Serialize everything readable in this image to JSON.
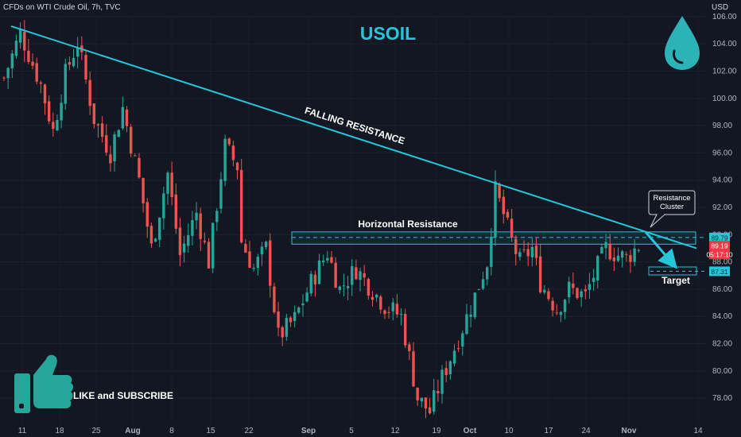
{
  "header": "CFDs on WTI Crude Oil, 7h, TVC",
  "currency": "USD",
  "title": "USOIL",
  "annotations": {
    "falling": "FALLING RESISTANCE",
    "horizontal": "Horizontal Resistance",
    "cluster_line1": "Resistance",
    "cluster_line2": "Cluster",
    "target": "Target",
    "cta": "LIKE and SUBSCRIBE"
  },
  "price_tags": [
    {
      "text": "89.79",
      "value": 89.79,
      "color": "#26c6da",
      "fg": "#0b2a30"
    },
    {
      "text": "89.19",
      "value": 89.19,
      "color": "#f23645",
      "fg": "#ffffff"
    },
    {
      "text": "05:17:10",
      "value": 88.55,
      "color": "#f23645",
      "fg": "#ffffff"
    },
    {
      "text": "87.31",
      "value": 87.31,
      "color": "#26c6da",
      "fg": "#0b2a30"
    }
  ],
  "colors": {
    "up": "#26a69a",
    "down": "#ef5350",
    "accent": "#26c6da"
  },
  "icons": [
    "water-drop-icon",
    "thumbs-up-icon"
  ],
  "chart_data": {
    "type": "candlestick",
    "title": "USOIL",
    "ylim": [
      76,
      107
    ],
    "y_ticks": [
      78,
      80,
      82,
      84,
      86,
      88,
      90,
      92,
      94,
      96,
      98,
      100,
      102,
      104,
      106
    ],
    "x_tick_labels": [
      "11",
      "18",
      "25",
      "Aug",
      "8",
      "15",
      "22",
      "Sep",
      "5",
      "12",
      "19",
      "Oct",
      "10",
      "17",
      "24",
      "Nov",
      "14"
    ],
    "close_path": [
      [
        0,
        101.5
      ],
      [
        4,
        104.8
      ],
      [
        9,
        101.0
      ],
      [
        12,
        97.6
      ],
      [
        15,
        101.8
      ],
      [
        18,
        104.1
      ],
      [
        22,
        98.5
      ],
      [
        26,
        96.0
      ],
      [
        29,
        99.3
      ],
      [
        33,
        94.0
      ],
      [
        36,
        89.0
      ],
      [
        40,
        94.5
      ],
      [
        43,
        88.5
      ],
      [
        47,
        91.6
      ],
      [
        50,
        88.0
      ],
      [
        54,
        96.5
      ],
      [
        57,
        95.0
      ],
      [
        58,
        89.5
      ],
      [
        61,
        87.5
      ],
      [
        64,
        89.0
      ],
      [
        67,
        82.5
      ],
      [
        71,
        83.8
      ],
      [
        75,
        86.5
      ],
      [
        79,
        88.7
      ],
      [
        82,
        86.0
      ],
      [
        86,
        87.5
      ],
      [
        89,
        86.3
      ],
      [
        93,
        84.8
      ],
      [
        97,
        84.0
      ],
      [
        101,
        78.0
      ],
      [
        104,
        77.0
      ],
      [
        107,
        79.5
      ],
      [
        111,
        82.4
      ],
      [
        115,
        85.5
      ],
      [
        118,
        88.0
      ],
      [
        120,
        93.2
      ],
      [
        122,
        91.5
      ],
      [
        124,
        89.5
      ],
      [
        126,
        88.0
      ],
      [
        129,
        89.0
      ],
      [
        131,
        86.5
      ],
      [
        135,
        84.5
      ],
      [
        138,
        86.0
      ],
      [
        142,
        85.5
      ],
      [
        144,
        87.0
      ],
      [
        147,
        89.0
      ],
      [
        150,
        88.5
      ],
      [
        152,
        88.3
      ],
      [
        155,
        89.2
      ]
    ],
    "ohlc_note": "about 155 seven-hour candles",
    "trendlines": [
      {
        "name": "FALLING RESISTANCE",
        "from": [
          0,
          105.3
        ],
        "to": [
          162,
          89.5
        ]
      }
    ],
    "zones": [
      {
        "name": "Horizontal Resistance",
        "y_range": [
          89.3,
          90.2
        ]
      }
    ],
    "levels": [
      89.79,
      87.31
    ]
  }
}
